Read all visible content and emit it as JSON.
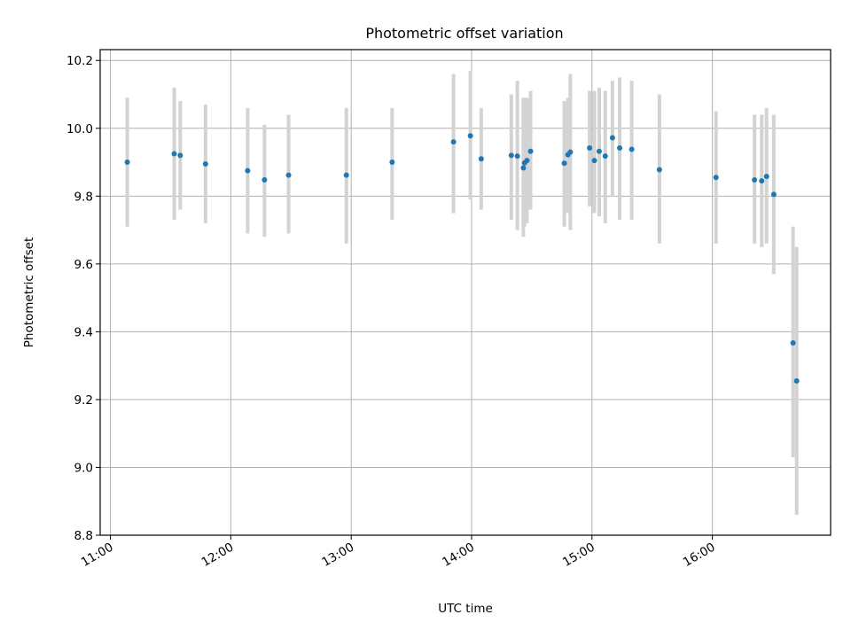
{
  "chart_data": {
    "type": "scatter",
    "title": "Photometric offset variation",
    "xlabel": "UTC time",
    "ylabel": "Photometric offset",
    "grid": true,
    "xlim_hours": [
      10.915,
      16.982
    ],
    "ylim": [
      8.8,
      10.232
    ],
    "x_ticks": [
      {
        "value": 11,
        "label": "11:00"
      },
      {
        "value": 12,
        "label": "12:00"
      },
      {
        "value": 13,
        "label": "13:00"
      },
      {
        "value": 14,
        "label": "14:00"
      },
      {
        "value": 15,
        "label": "15:00"
      },
      {
        "value": 16,
        "label": "16:00"
      }
    ],
    "y_ticks": [
      {
        "value": 8.8,
        "label": "8.8"
      },
      {
        "value": 9.0,
        "label": "9.0"
      },
      {
        "value": 9.2,
        "label": "9.2"
      },
      {
        "value": 9.4,
        "label": "9.4"
      },
      {
        "value": 9.6,
        "label": "9.6"
      },
      {
        "value": 9.8,
        "label": "9.8"
      },
      {
        "value": 10.0,
        "label": "10.0"
      },
      {
        "value": 10.2,
        "label": "10.2"
      }
    ],
    "series": [
      {
        "name": "Photometric offset",
        "marker_color": "#1f77b4",
        "errorbar_color": "#d3d3d3",
        "points": [
          {
            "t": 11.14,
            "y": 9.9,
            "lo": 9.71,
            "hi": 10.09
          },
          {
            "t": 11.53,
            "y": 9.925,
            "lo": 9.73,
            "hi": 10.12
          },
          {
            "t": 11.58,
            "y": 9.92,
            "lo": 9.76,
            "hi": 10.08
          },
          {
            "t": 11.79,
            "y": 9.895,
            "lo": 9.72,
            "hi": 10.07
          },
          {
            "t": 12.14,
            "y": 9.875,
            "lo": 9.69,
            "hi": 10.06
          },
          {
            "t": 12.28,
            "y": 9.848,
            "lo": 9.68,
            "hi": 10.01
          },
          {
            "t": 12.48,
            "y": 9.862,
            "lo": 9.69,
            "hi": 10.04
          },
          {
            "t": 12.96,
            "y": 9.862,
            "lo": 9.66,
            "hi": 10.06
          },
          {
            "t": 13.34,
            "y": 9.9,
            "lo": 9.73,
            "hi": 10.06
          },
          {
            "t": 13.85,
            "y": 9.96,
            "lo": 9.75,
            "hi": 10.16
          },
          {
            "t": 13.99,
            "y": 9.978,
            "lo": 9.79,
            "hi": 10.17
          },
          {
            "t": 14.08,
            "y": 9.91,
            "lo": 9.76,
            "hi": 10.06
          },
          {
            "t": 14.33,
            "y": 9.92,
            "lo": 9.73,
            "hi": 10.1
          },
          {
            "t": 14.38,
            "y": 9.918,
            "lo": 9.7,
            "hi": 10.14
          },
          {
            "t": 14.43,
            "y": 9.883,
            "lo": 9.68,
            "hi": 10.09
          },
          {
            "t": 14.44,
            "y": 9.898,
            "lo": 9.71,
            "hi": 10.09
          },
          {
            "t": 14.46,
            "y": 9.905,
            "lo": 9.72,
            "hi": 10.09
          },
          {
            "t": 14.49,
            "y": 9.932,
            "lo": 9.76,
            "hi": 10.11
          },
          {
            "t": 14.77,
            "y": 9.897,
            "lo": 9.71,
            "hi": 10.08
          },
          {
            "t": 14.8,
            "y": 9.922,
            "lo": 9.75,
            "hi": 10.09
          },
          {
            "t": 14.82,
            "y": 9.93,
            "lo": 9.7,
            "hi": 10.16
          },
          {
            "t": 14.98,
            "y": 9.942,
            "lo": 9.77,
            "hi": 10.11
          },
          {
            "t": 15.02,
            "y": 9.905,
            "lo": 9.75,
            "hi": 10.11
          },
          {
            "t": 15.06,
            "y": 9.932,
            "lo": 9.74,
            "hi": 10.12
          },
          {
            "t": 15.11,
            "y": 9.918,
            "lo": 9.72,
            "hi": 10.11
          },
          {
            "t": 15.17,
            "y": 9.972,
            "lo": 9.8,
            "hi": 10.14
          },
          {
            "t": 15.23,
            "y": 9.942,
            "lo": 9.73,
            "hi": 10.15
          },
          {
            "t": 15.33,
            "y": 9.938,
            "lo": 9.73,
            "hi": 10.14
          },
          {
            "t": 15.56,
            "y": 9.878,
            "lo": 9.66,
            "hi": 10.1
          },
          {
            "t": 16.03,
            "y": 9.855,
            "lo": 9.66,
            "hi": 10.05
          },
          {
            "t": 16.35,
            "y": 9.848,
            "lo": 9.66,
            "hi": 10.04
          },
          {
            "t": 16.41,
            "y": 9.845,
            "lo": 9.65,
            "hi": 10.04
          },
          {
            "t": 16.45,
            "y": 9.858,
            "lo": 9.66,
            "hi": 10.06
          },
          {
            "t": 16.51,
            "y": 9.805,
            "lo": 9.57,
            "hi": 10.04
          },
          {
            "t": 16.67,
            "y": 9.367,
            "lo": 9.03,
            "hi": 9.71
          },
          {
            "t": 16.7,
            "y": 9.255,
            "lo": 8.86,
            "hi": 9.65
          }
        ]
      }
    ]
  }
}
